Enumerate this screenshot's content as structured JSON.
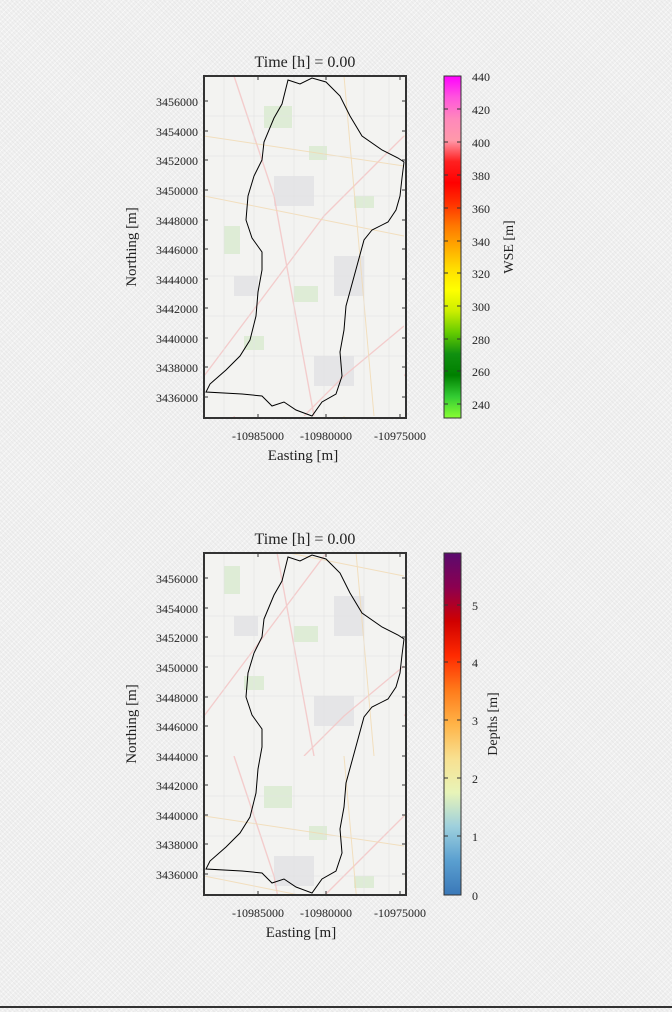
{
  "panels": [
    {
      "id": "wse",
      "title": "Time [h] = 0.00",
      "xlabel": "Easting [m]",
      "ylabel": "Northing [m]",
      "xticks": [
        "-10985000",
        "-10980000",
        "-10975000"
      ],
      "yticks": [
        "3456000",
        "3454000",
        "3452000",
        "3450000",
        "3448000",
        "3446000",
        "3444000",
        "3442000",
        "3440000",
        "3438000",
        "3436000"
      ],
      "colorbar": {
        "label": "WSE [m]",
        "ticks": [
          "440",
          "420",
          "400",
          "380",
          "360",
          "340",
          "320",
          "300",
          "280",
          "260",
          "240"
        ],
        "colors": [
          "#ff00ff",
          "#ff55dd",
          "#ff88bb",
          "#ff99aa",
          "#ff2020",
          "#ff0000",
          "#ff3300",
          "#ff7700",
          "#ffaa00",
          "#ffdd00",
          "#ffff00",
          "#ccee00",
          "#66cc00",
          "#109010",
          "#008000",
          "#33cc33",
          "#88ff33"
        ]
      }
    },
    {
      "id": "depth",
      "title": "Time [h] = 0.00",
      "xlabel": "Easting [m]",
      "ylabel": "Northing [m]",
      "xticks": [
        "-10985000",
        "-10980000",
        "-10975000"
      ],
      "yticks": [
        "3456000",
        "3454000",
        "3452000",
        "3450000",
        "3448000",
        "3446000",
        "3444000",
        "3442000",
        "3440000",
        "3438000",
        "3436000"
      ],
      "colorbar": {
        "label": "Depths [m]",
        "ticks": [
          "5",
          "4",
          "3",
          "2",
          "1",
          "0"
        ],
        "colors": [
          "#5a0a6e",
          "#8b0050",
          "#d00000",
          "#ff2a00",
          "#ff7a1a",
          "#ffb347",
          "#f8e090",
          "#e8f4b8",
          "#9ed0dd",
          "#5a9fd0",
          "#3a78b8"
        ]
      }
    }
  ]
}
